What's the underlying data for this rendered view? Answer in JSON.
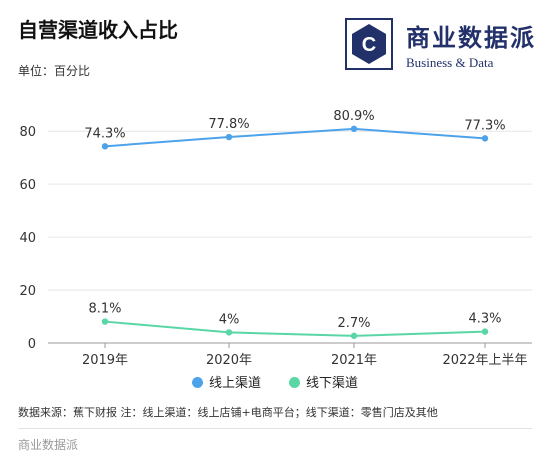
{
  "title": "自营渠道收入占比",
  "unit": "单位：百分比",
  "logo": {
    "cn": "商业数据派",
    "en": "Business & Data",
    "icon": "hexagon-c-logo-icon"
  },
  "source": "数据来源：蕉下财报 注：线上渠道：线上店铺+电商平台；线下渠道：零售门店及其他",
  "footer": "商业数据派",
  "chart_data": {
    "type": "line",
    "categories": [
      "2019年",
      "2020年",
      "2021年",
      "2022年上半年"
    ],
    "ylim": [
      0,
      85
    ],
    "yticks": [
      0,
      20,
      40,
      60,
      80
    ],
    "grid": true,
    "legend_position": "bottom",
    "series": [
      {
        "name": "线上渠道",
        "color": "#4da3ea",
        "values": [
          74.3,
          77.8,
          80.9,
          77.3
        ],
        "labels": [
          "74.3%",
          "77.8%",
          "80.9%",
          "77.3%"
        ]
      },
      {
        "name": "线下渠道",
        "color": "#5ad6a6",
        "values": [
          8.1,
          4,
          2.7,
          4.3
        ],
        "labels": [
          "8.1%",
          "4%",
          "2.7%",
          "4.3%"
        ]
      }
    ]
  }
}
